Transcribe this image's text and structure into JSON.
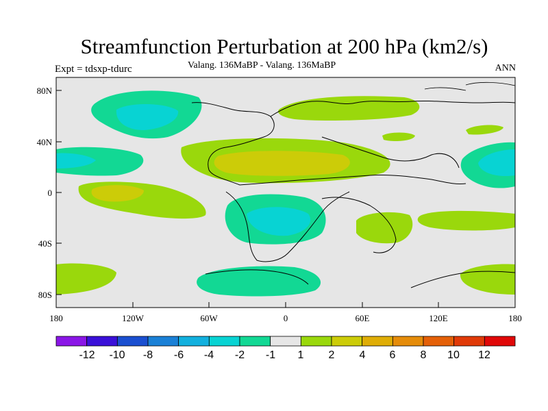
{
  "title": "Streamfunction Perturbation at 200 hPa (km2/s)",
  "subtitle_left": "Expt = tdsxp-tdurc",
  "subtitle_center": "Valang. 136MaBP - Valang.  136MaBP",
  "subtitle_right": "ANN",
  "y_ticks": [
    "80N",
    "40N",
    "0",
    "40S",
    "80S"
  ],
  "x_ticks": [
    "180",
    "120W",
    "60W",
    "0",
    "60E",
    "120E",
    "180"
  ],
  "colorbar": {
    "colors": [
      "#8a16e6",
      "#3a10d8",
      "#1a4fd0",
      "#1a80d6",
      "#12b0de",
      "#08d3d3",
      "#12d894",
      "#e6e6e6",
      "#9ad80c",
      "#cccc08",
      "#dfad06",
      "#e58c0a",
      "#e46008",
      "#e03a08",
      "#e00808"
    ],
    "labels": [
      "-12",
      "-10",
      "-8",
      "-6",
      "-4",
      "-2",
      "-1",
      "1",
      "2",
      "4",
      "6",
      "8",
      "10",
      "12"
    ]
  }
}
